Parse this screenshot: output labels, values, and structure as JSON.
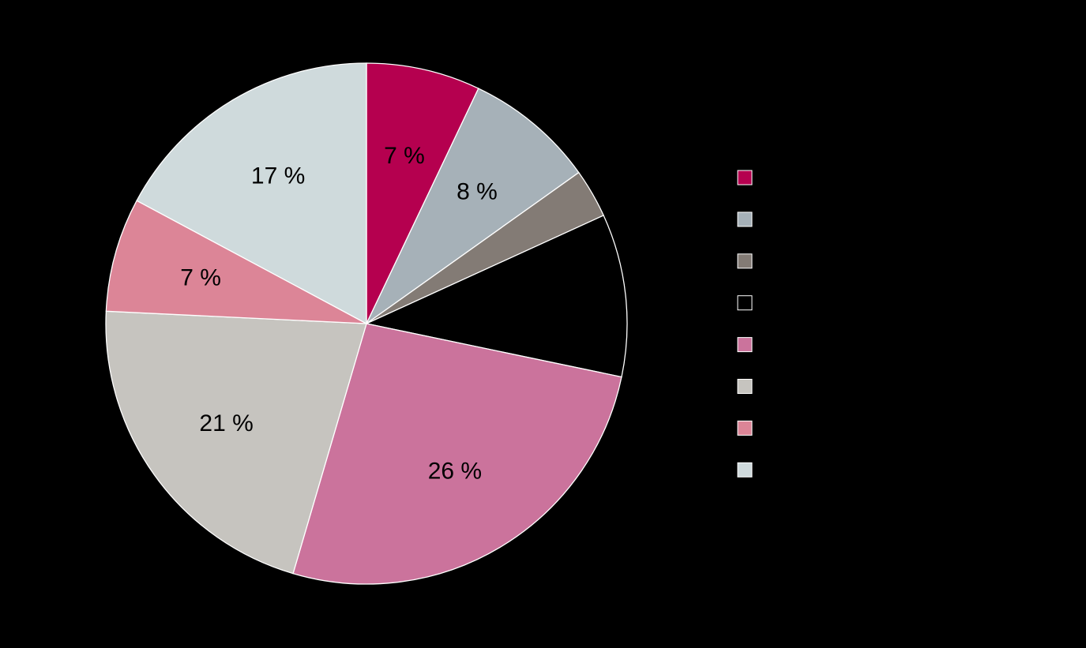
{
  "chart_data": {
    "type": "pie",
    "title": "",
    "start_angle_deg": 0,
    "direction": "clockwise",
    "slice_border_color": "#ffffff",
    "background": "#000000",
    "legend_position": "right",
    "slices": [
      {
        "value": 7,
        "label": "7 %",
        "color": "#b5004f"
      },
      {
        "value": 8,
        "label": "8 %",
        "color": "#a6b1b8"
      },
      {
        "value": 3,
        "label": "",
        "color": "#837b75"
      },
      {
        "value": 10,
        "label": "",
        "color": "#000000"
      },
      {
        "value": 26,
        "label": "26 %",
        "color": "#cb739c"
      },
      {
        "value": 21,
        "label": "21 %",
        "color": "#c6c4bf"
      },
      {
        "value": 7,
        "label": "7 %",
        "color": "#dc8597"
      },
      {
        "value": 17,
        "label": "17 %",
        "color": "#cfdadc"
      }
    ]
  }
}
